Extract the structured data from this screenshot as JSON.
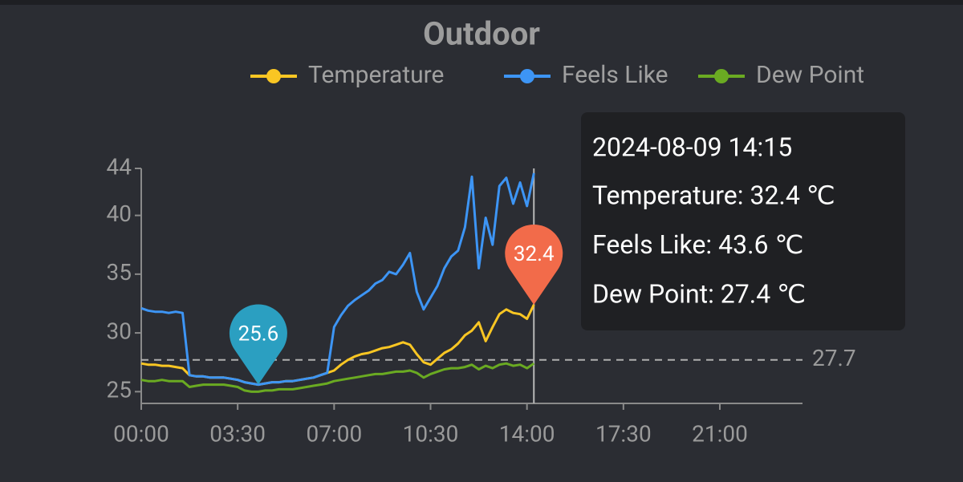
{
  "chart_data": {
    "type": "line",
    "title": "Outdoor",
    "x": [
      "00:00",
      "00:15",
      "00:30",
      "00:45",
      "01:00",
      "01:15",
      "01:30",
      "01:45",
      "02:00",
      "02:15",
      "02:30",
      "02:45",
      "03:00",
      "03:15",
      "03:30",
      "03:45",
      "04:00",
      "04:15",
      "04:30",
      "04:45",
      "05:00",
      "05:15",
      "05:30",
      "05:45",
      "06:00",
      "06:15",
      "06:30",
      "06:45",
      "07:00",
      "07:15",
      "07:30",
      "07:45",
      "08:00",
      "08:15",
      "08:30",
      "08:45",
      "09:00",
      "09:15",
      "09:30",
      "09:45",
      "10:00",
      "10:15",
      "10:30",
      "10:45",
      "11:00",
      "11:15",
      "11:30",
      "11:45",
      "12:00",
      "12:15",
      "12:30",
      "12:45",
      "13:00",
      "13:15",
      "13:30",
      "13:45",
      "14:00",
      "14:15"
    ],
    "series": [
      {
        "name": "Temperature",
        "color": "#f9c623",
        "values": [
          27.4,
          27.3,
          27.3,
          27.2,
          27.2,
          27.1,
          27.0,
          26.4,
          26.3,
          26.3,
          26.2,
          26.2,
          26.2,
          26.1,
          26.0,
          25.8,
          25.7,
          25.6,
          25.7,
          25.8,
          25.8,
          25.9,
          25.9,
          26.0,
          26.1,
          26.2,
          26.4,
          26.6,
          26.8,
          27.3,
          27.7,
          28.0,
          28.2,
          28.3,
          28.5,
          28.7,
          28.8,
          29.0,
          29.2,
          29.0,
          28.2,
          27.5,
          27.3,
          27.8,
          28.3,
          28.6,
          29.1,
          29.8,
          30.2,
          30.9,
          29.3,
          30.5,
          31.6,
          32.0,
          31.7,
          31.6,
          31.2,
          32.4
        ]
      },
      {
        "name": "Feels Like",
        "color": "#3d95f5",
        "values": [
          32.1,
          31.9,
          31.8,
          31.8,
          31.7,
          31.8,
          31.7,
          26.4,
          26.3,
          26.3,
          26.2,
          26.2,
          26.2,
          26.1,
          26.0,
          25.8,
          25.7,
          25.6,
          25.7,
          25.8,
          25.8,
          25.9,
          25.9,
          26.0,
          26.1,
          26.2,
          26.4,
          26.6,
          30.5,
          31.5,
          32.3,
          32.8,
          33.2,
          33.6,
          34.2,
          34.5,
          35.2,
          35.0,
          35.8,
          36.8,
          33.5,
          32.0,
          33.0,
          34.0,
          35.5,
          36.5,
          37.0,
          39.0,
          43.3,
          35.5,
          39.8,
          37.5,
          42.5,
          43.2,
          41.0,
          42.8,
          40.8,
          43.6
        ]
      },
      {
        "name": "Dew Point",
        "color": "#6aaa22",
        "values": [
          26.0,
          25.9,
          25.9,
          26.0,
          25.9,
          25.9,
          25.9,
          25.4,
          25.5,
          25.6,
          25.6,
          25.6,
          25.6,
          25.5,
          25.4,
          25.1,
          25.0,
          25.0,
          25.1,
          25.1,
          25.2,
          25.2,
          25.2,
          25.3,
          25.4,
          25.5,
          25.6,
          25.7,
          25.9,
          26.0,
          26.1,
          26.2,
          26.3,
          26.4,
          26.5,
          26.5,
          26.6,
          26.7,
          26.7,
          26.8,
          26.6,
          26.2,
          26.5,
          26.7,
          26.9,
          27.0,
          27.0,
          27.1,
          27.3,
          26.9,
          27.2,
          27.0,
          27.3,
          27.4,
          27.2,
          27.3,
          27.0,
          27.4
        ]
      }
    ],
    "xlim": [
      "00:00",
      "24:00"
    ],
    "xticks": [
      "00:00",
      "03:30",
      "07:00",
      "10:30",
      "14:00",
      "17:30",
      "21:00"
    ],
    "ylim": [
      24,
      44
    ],
    "yticks": [
      25,
      30,
      35,
      40,
      44
    ],
    "grid": false,
    "mark_points": [
      {
        "x": "04:15",
        "value": 25.6,
        "color": "#2b9fc1"
      },
      {
        "x": "14:15",
        "value": 32.4,
        "color": "#f26b4a"
      }
    ],
    "mark_line": {
      "value": 27.7
    },
    "cursor_x": "14:15",
    "tooltip": {
      "title": "2024-08-09 14:15",
      "lines": [
        "Temperature: 32.4 ℃",
        "Feels Like: 43.6 ℃",
        "Dew Point: 27.4 ℃"
      ]
    }
  }
}
